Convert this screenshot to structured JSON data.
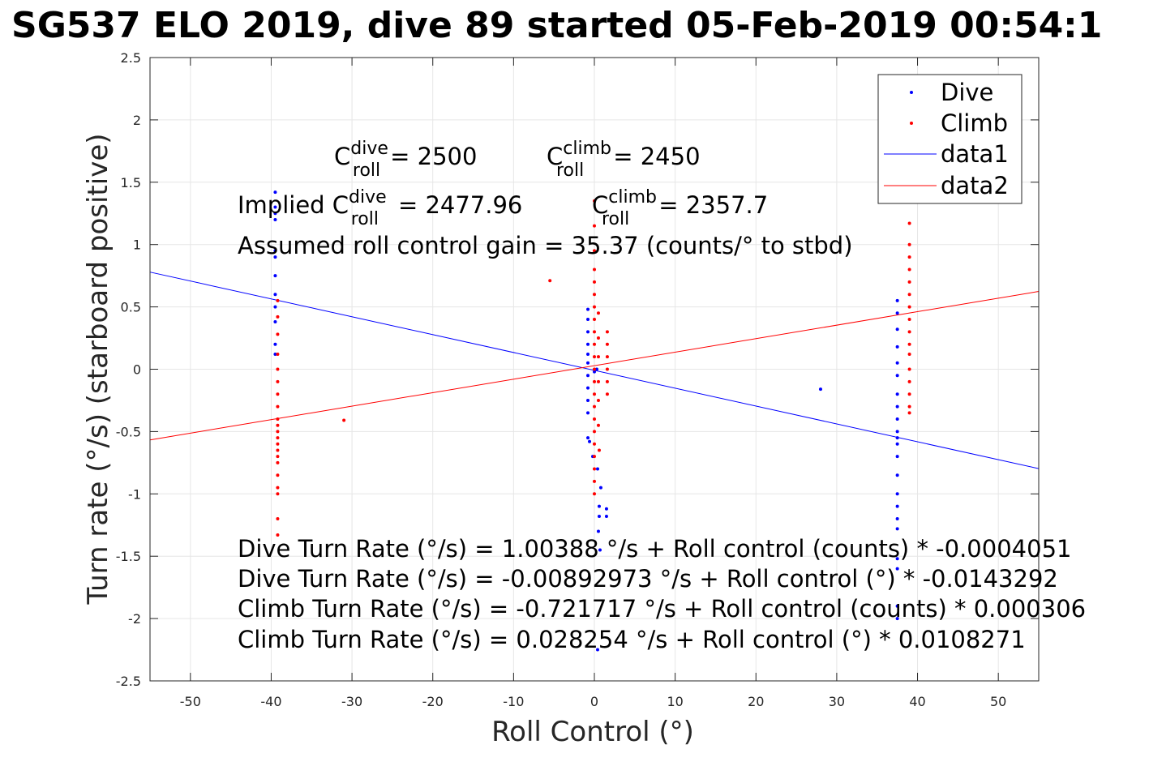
{
  "title": "SG537 ELO 2019, dive 89 started 05-Feb-2019 00:54:1",
  "chart_data": {
    "type": "scatter",
    "title": "SG537 ELO 2019, dive 89 started 05-Feb-2019 00:54:1",
    "xlabel": "Roll Control (°)",
    "ylabel": "Turn rate (°/s) (starboard positive)",
    "xlim": [
      -55,
      55
    ],
    "ylim": [
      -2.5,
      2.5
    ],
    "grid": true,
    "legend_position": "top-right",
    "x_ticks": [
      "-50",
      "-40",
      "-30",
      "-20",
      "-10",
      "0",
      "10",
      "20",
      "30",
      "40",
      "50"
    ],
    "y_ticks": [
      "2.5",
      "2",
      "1.5",
      "1",
      "0.5",
      "0",
      "-0.5",
      "-1",
      "-1.5",
      "-2",
      "-2.5"
    ],
    "series": [
      {
        "name": "Dive",
        "kind": "points",
        "color": "#0000ff",
        "points": [
          [
            -39.5,
            1.42
          ],
          [
            -39.5,
            1.3
          ],
          [
            -39.5,
            1.25
          ],
          [
            -39.5,
            1.2
          ],
          [
            -39.5,
            0.95
          ],
          [
            -39.5,
            0.9
          ],
          [
            -39.5,
            0.75
          ],
          [
            -39.5,
            0.6
          ],
          [
            -39.5,
            0.5
          ],
          [
            -39.5,
            0.38
          ],
          [
            -39.5,
            0.2
          ],
          [
            -39.5,
            0.12
          ],
          [
            -0.8,
            0.48
          ],
          [
            -0.8,
            0.4
          ],
          [
            -0.8,
            0.3
          ],
          [
            -0.8,
            0.2
          ],
          [
            -0.8,
            0.12
          ],
          [
            -0.8,
            0.05
          ],
          [
            -0.8,
            -0.05
          ],
          [
            -0.8,
            -0.15
          ],
          [
            -0.8,
            -0.25
          ],
          [
            -0.8,
            -0.35
          ],
          [
            -0.8,
            -0.55
          ],
          [
            -0.6,
            -0.58
          ],
          [
            -0.2,
            -0.7
          ],
          [
            0.4,
            -0.8
          ],
          [
            0.6,
            -1.1
          ],
          [
            0.6,
            -1.18
          ],
          [
            0.5,
            -1.3
          ],
          [
            0.7,
            -1.45
          ],
          [
            0.4,
            -2.25
          ],
          [
            1.5,
            -1.18
          ],
          [
            1.5,
            -1.12
          ],
          [
            0.8,
            -0.95
          ],
          [
            0.3,
            0.0
          ],
          [
            0.0,
            -0.02
          ],
          [
            28.0,
            -0.16
          ],
          [
            37.5,
            0.55
          ],
          [
            37.5,
            0.45
          ],
          [
            37.5,
            0.32
          ],
          [
            37.5,
            0.18
          ],
          [
            37.5,
            0.05
          ],
          [
            37.5,
            -0.05
          ],
          [
            37.5,
            -0.2
          ],
          [
            37.5,
            -0.3
          ],
          [
            37.5,
            -0.4
          ],
          [
            37.5,
            -0.5
          ],
          [
            37.5,
            -0.55
          ],
          [
            37.5,
            -0.6
          ],
          [
            37.5,
            -0.7
          ],
          [
            37.5,
            -0.85
          ],
          [
            37.5,
            -1.0
          ],
          [
            37.5,
            -1.1
          ],
          [
            37.5,
            -1.2
          ],
          [
            37.5,
            -1.28
          ],
          [
            37.5,
            -1.52
          ],
          [
            37.5,
            -1.6
          ],
          [
            37.5,
            -1.9
          ],
          [
            37.5,
            -2.0
          ]
        ]
      },
      {
        "name": "Climb",
        "kind": "points",
        "color": "#ff0000",
        "points": [
          [
            -39.2,
            0.55
          ],
          [
            -39.2,
            0.42
          ],
          [
            -39.2,
            0.28
          ],
          [
            -39.2,
            0.12
          ],
          [
            -39.2,
            0.0
          ],
          [
            -39.2,
            -0.1
          ],
          [
            -39.2,
            -0.2
          ],
          [
            -39.2,
            -0.3
          ],
          [
            -39.2,
            -0.4
          ],
          [
            -39.2,
            -0.45
          ],
          [
            -39.2,
            -0.5
          ],
          [
            -39.2,
            -0.55
          ],
          [
            -39.2,
            -0.6
          ],
          [
            -39.2,
            -0.65
          ],
          [
            -39.2,
            -0.7
          ],
          [
            -39.2,
            -0.75
          ],
          [
            -39.2,
            -0.85
          ],
          [
            -39.2,
            -0.95
          ],
          [
            -39.2,
            -1.0
          ],
          [
            -39.2,
            -1.2
          ],
          [
            -39.2,
            -1.33
          ],
          [
            -31.0,
            -0.41
          ],
          [
            -5.5,
            0.71
          ],
          [
            0.0,
            1.35
          ],
          [
            0.0,
            1.15
          ],
          [
            0.0,
            0.95
          ],
          [
            0.0,
            0.8
          ],
          [
            0.0,
            0.7
          ],
          [
            0.0,
            0.6
          ],
          [
            0.0,
            0.5
          ],
          [
            0.0,
            0.4
          ],
          [
            0.0,
            0.3
          ],
          [
            0.0,
            0.2
          ],
          [
            0.0,
            0.1
          ],
          [
            0.0,
            0.0
          ],
          [
            0.0,
            -0.1
          ],
          [
            0.0,
            -0.2
          ],
          [
            0.0,
            -0.3
          ],
          [
            0.0,
            -0.4
          ],
          [
            0.0,
            -0.5
          ],
          [
            0.0,
            -0.6
          ],
          [
            0.0,
            -0.7
          ],
          [
            0.0,
            -0.8
          ],
          [
            0.0,
            -0.9
          ],
          [
            0.0,
            -1.0
          ],
          [
            0.5,
            0.45
          ],
          [
            0.5,
            0.25
          ],
          [
            0.5,
            0.1
          ],
          [
            0.5,
            -0.1
          ],
          [
            0.5,
            -0.25
          ],
          [
            0.5,
            -0.45
          ],
          [
            0.6,
            -0.65
          ],
          [
            1.6,
            0.3
          ],
          [
            1.6,
            0.2
          ],
          [
            1.6,
            0.1
          ],
          [
            1.6,
            0.0
          ],
          [
            1.6,
            -0.1
          ],
          [
            1.6,
            -0.2
          ],
          [
            39.0,
            1.17
          ],
          [
            39.0,
            1.0
          ],
          [
            39.0,
            0.9
          ],
          [
            39.0,
            0.8
          ],
          [
            39.0,
            0.7
          ],
          [
            39.0,
            0.6
          ],
          [
            39.0,
            0.5
          ],
          [
            39.0,
            0.4
          ],
          [
            39.0,
            0.3
          ],
          [
            39.0,
            0.2
          ],
          [
            39.0,
            0.12
          ],
          [
            39.0,
            0.0
          ],
          [
            39.0,
            -0.1
          ],
          [
            39.0,
            -0.2
          ],
          [
            39.0,
            -0.3
          ],
          [
            39.0,
            -0.35
          ]
        ]
      },
      {
        "name": "data1",
        "kind": "line",
        "color": "#0000ff",
        "x": [
          -55,
          55
        ],
        "y": [
          0.779,
          -0.797
        ]
      },
      {
        "name": "data2",
        "kind": "line",
        "color": "#ff0000",
        "x": [
          -55,
          55
        ],
        "y": [
          -0.567,
          0.624
        ]
      }
    ],
    "legend": [
      "Dive",
      "Climb",
      "data1",
      "data2"
    ],
    "annotations": {
      "c_dive": {
        "prefix": "C",
        "sup": "dive",
        "sub": "roll",
        "value": "= 2500"
      },
      "c_climb": {
        "prefix": "C",
        "sup": "climb",
        "sub": "roll",
        "value": "= 2450"
      },
      "implied_dive": {
        "prefix": "Implied C",
        "sup": "dive",
        "sub": "roll",
        "value": "= 2477.96"
      },
      "implied_climb": {
        "prefix": "C",
        "sup": "climb",
        "sub": "roll",
        "value": "= 2357.7"
      },
      "gain": "Assumed roll control gain = 35.37 (counts/° to stbd)",
      "eq1": "Dive Turn Rate (°/s) = 1.00388 °/s + Roll control (counts) * -0.0004051",
      "eq2": "Dive Turn Rate (°/s) = -0.00892973 °/s + Roll control (°) * -0.0143292",
      "eq3": "Climb Turn Rate (°/s) = -0.721717 °/s + Roll control (counts) * 0.000306",
      "eq4": "Climb Turn Rate (°/s) = 0.028254 °/s + Roll control (°) * 0.0108271"
    }
  }
}
